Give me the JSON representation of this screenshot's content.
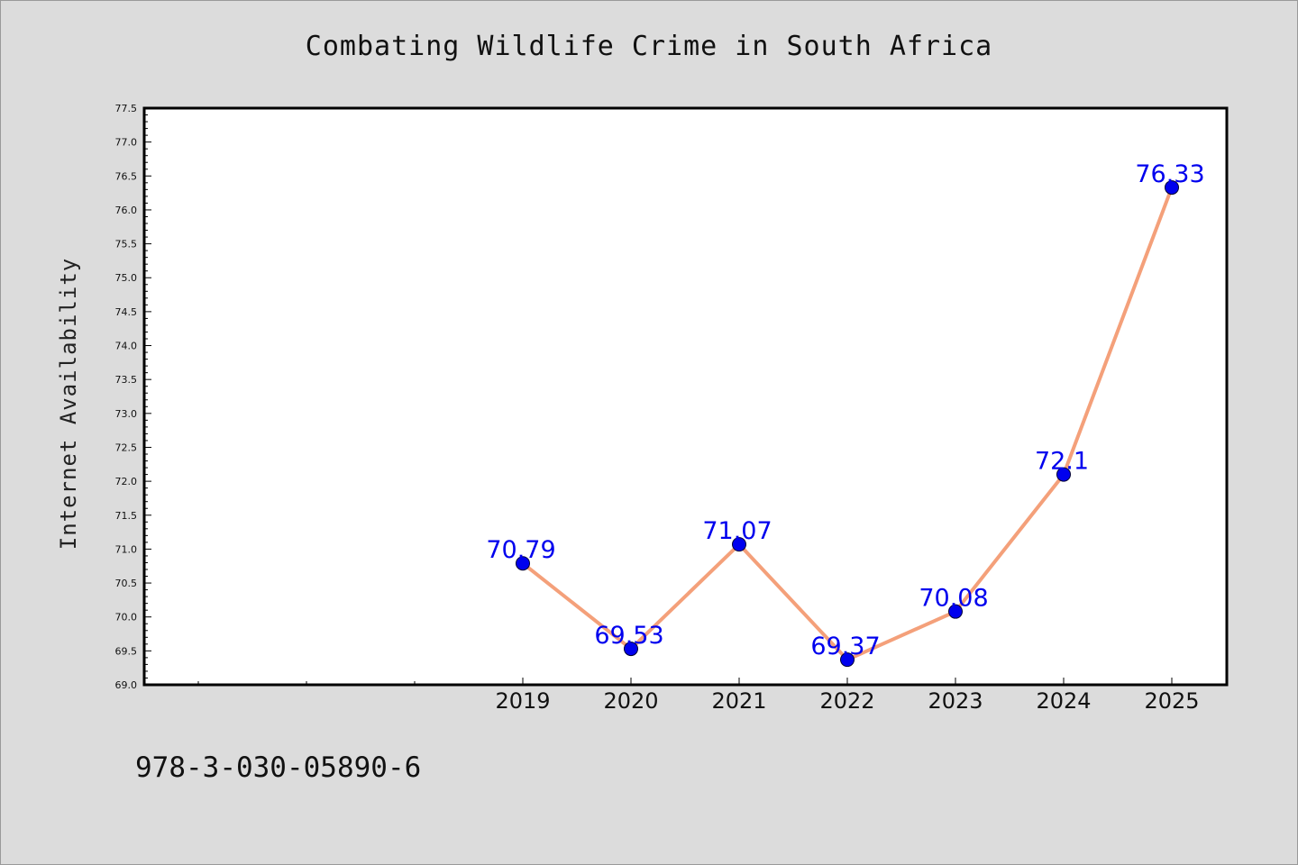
{
  "chart_data": {
    "type": "line",
    "title": "Combating Wildlife Crime in South Africa",
    "xlabel": "",
    "ylabel": "Internet Availability",
    "categories": [
      "2019",
      "2020",
      "2021",
      "2022",
      "2023",
      "2024",
      "2025"
    ],
    "series": [
      {
        "values": [
          70.79,
          69.53,
          71.07,
          69.37,
          70.08,
          72.1,
          76.33
        ],
        "labels": [
          "70.79",
          "69.53",
          "71.07",
          "69.37",
          "70.08",
          "72.1",
          "76.33"
        ],
        "line_color": "#f4a07a",
        "marker_color": "#0000ee"
      }
    ],
    "ylim": [
      69.0,
      77.5
    ],
    "yticks": [
      "69.0",
      "69.5",
      "70.0",
      "70.5",
      "71.0",
      "71.5",
      "72.0",
      "72.5",
      "73.0",
      "73.5",
      "74.0",
      "74.5",
      "75.0",
      "75.5",
      "76.0",
      "76.5",
      "77.0",
      "77.5"
    ],
    "grid": false,
    "legend": "none",
    "background_color": "#dcdcdc",
    "plot_background": "#ffffff"
  },
  "footer": {
    "code": "978-3-030-05890-6"
  }
}
